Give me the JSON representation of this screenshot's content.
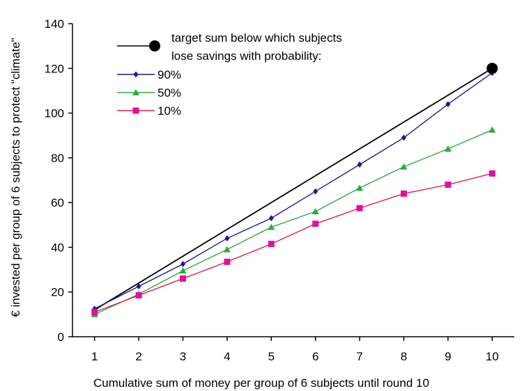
{
  "chart_data": {
    "type": "line",
    "xlabel": "Cumulative sum of money per group of 6 subjects until round 10",
    "ylabel": "€ invested per group of 6 subjects to protect  \"climate\"",
    "x": [
      1,
      2,
      3,
      4,
      5,
      6,
      7,
      8,
      9,
      10
    ],
    "xlim": [
      0.5,
      10.5
    ],
    "ylim": [
      0,
      140
    ],
    "yticks": [
      0,
      20,
      40,
      60,
      80,
      100,
      120,
      140
    ],
    "xticks": [
      1,
      2,
      3,
      4,
      5,
      6,
      7,
      8,
      9,
      10
    ],
    "grid": false,
    "legend_position": "top-left",
    "target": {
      "name": "target sum below which subjects",
      "name_line2": "lose savings with probability:",
      "x": [
        1,
        10
      ],
      "y": [
        12,
        120
      ],
      "color": "#000000"
    },
    "series": [
      {
        "name": "90%",
        "color": "#1a1a8c",
        "marker": "diamond",
        "values": [
          12.5,
          22.5,
          32.5,
          44,
          53,
          65,
          77,
          89,
          104,
          118
        ]
      },
      {
        "name": "50%",
        "color": "#2eaa3a",
        "marker": "triangle",
        "values": [
          10,
          19,
          29.5,
          39,
          49,
          56,
          66.5,
          76,
          84,
          92.5
        ]
      },
      {
        "name": "10%",
        "color": "#e0204a",
        "marker_color": "#e0109a",
        "marker": "square",
        "values": [
          11,
          18.5,
          26,
          33.5,
          41.5,
          50.5,
          57.5,
          64,
          68,
          73
        ]
      }
    ]
  }
}
